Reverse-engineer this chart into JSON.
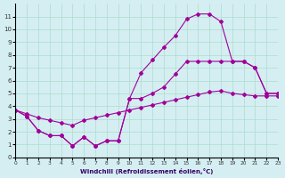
{
  "xlabel": "Windchill (Refroidissement éolien,°C)",
  "bg_color": "#d5eef2",
  "grid_color": "#aaddcc",
  "line_color": "#a0009a",
  "x_max": 23,
  "y_min": 0,
  "y_max": 12,
  "line1": [
    3.7,
    3.2,
    2.1,
    1.7,
    1.7,
    0.9,
    1.6,
    0.9,
    1.3,
    1.3,
    4.6,
    6.6,
    7.6,
    8.6,
    9.5,
    10.8,
    11.2,
    11.2,
    10.6,
    7.5,
    7.5,
    7.0,
    5.0,
    5.0
  ],
  "line2": [
    3.7,
    3.2,
    2.1,
    1.7,
    1.7,
    0.9,
    1.6,
    0.9,
    1.3,
    1.3,
    4.6,
    4.6,
    5.0,
    5.5,
    6.5,
    7.5,
    7.5,
    7.5,
    7.5,
    7.5,
    7.5,
    7.0,
    5.0,
    5.0
  ],
  "line3": [
    3.7,
    3.4,
    3.1,
    2.9,
    2.7,
    2.5,
    2.9,
    3.1,
    3.3,
    3.5,
    3.7,
    3.9,
    4.1,
    4.3,
    4.5,
    4.7,
    4.9,
    5.1,
    5.2,
    5.0,
    4.9,
    4.8,
    4.8,
    4.8
  ]
}
